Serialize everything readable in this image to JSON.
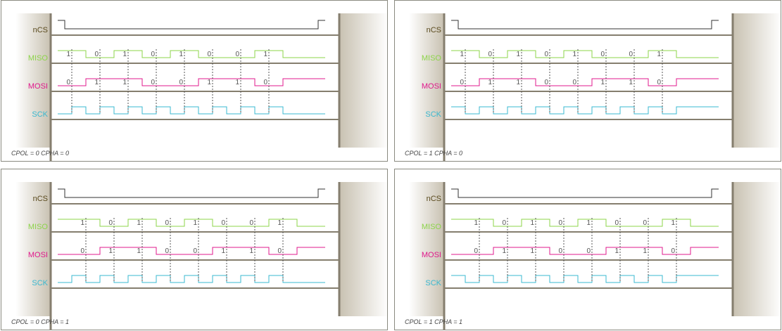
{
  "colors": {
    "ncs": "#333333",
    "ncs_label": "#5a4a1e",
    "miso": "#8dd44a",
    "mosi": "#e0188c",
    "sck": "#3ab8d0",
    "rail": "#857e6e",
    "gradient_dark": "#c8c1b1",
    "gradient_light": "#ffffff",
    "dash": "#555555",
    "bit_text": "#555555"
  },
  "signals": [
    {
      "key": "ncs",
      "label": "nCS"
    },
    {
      "key": "miso",
      "label": "MISO"
    },
    {
      "key": "mosi",
      "label": "MOSI"
    },
    {
      "key": "sck",
      "label": "SCK"
    }
  ],
  "miso_bits": [
    "1",
    "0",
    "1",
    "0",
    "1",
    "0",
    "0",
    "1"
  ],
  "mosi_bits": [
    "0",
    "1",
    "1",
    "0",
    "0",
    "1",
    "1",
    "0"
  ],
  "panels": [
    {
      "caption": "CPOL = 0 CPHA = 0",
      "cpol": 0,
      "cpha": 0
    },
    {
      "caption": "CPOL = 1 CPHA = 0",
      "cpol": 1,
      "cpha": 0
    },
    {
      "caption": "CPOL = 0 CPHA = 1",
      "cpol": 0,
      "cpha": 1
    },
    {
      "caption": "CPOL = 1 CPHA = 1",
      "cpol": 1,
      "cpha": 1
    }
  ]
}
